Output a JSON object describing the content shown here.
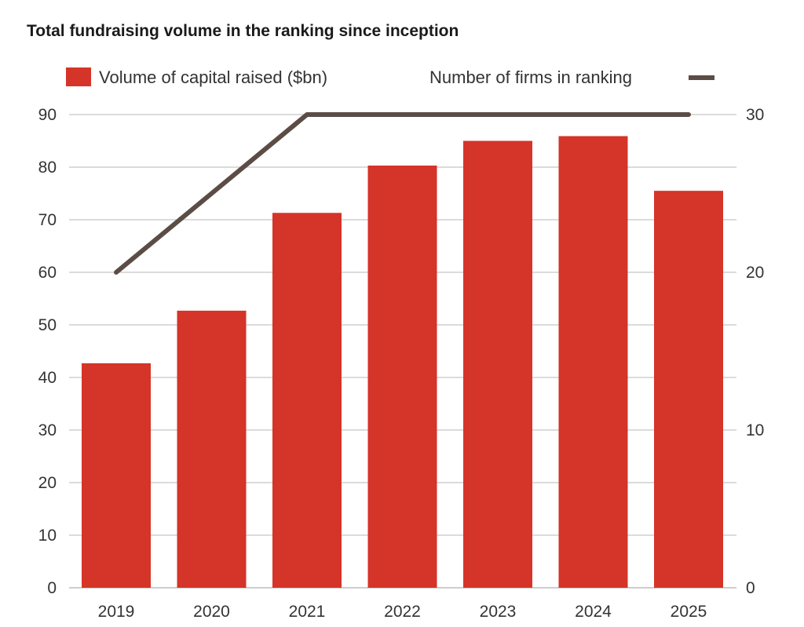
{
  "chart_data": {
    "type": "bar",
    "title": "Total fundraising volume in the ranking since inception",
    "categories": [
      "2019",
      "2020",
      "2021",
      "2022",
      "2023",
      "2024",
      "2025"
    ],
    "series": [
      {
        "name": "Volume of capital raised ($bn)",
        "type": "bar",
        "axis": "left",
        "color": "#d53429",
        "values": [
          42.7,
          52.7,
          71.3,
          80.3,
          85.0,
          85.9,
          75.5
        ]
      },
      {
        "name": "Number of firms in ranking",
        "type": "line",
        "axis": "right",
        "color": "#5b4d45",
        "values": [
          20,
          25,
          30,
          30,
          30,
          30,
          30
        ]
      }
    ],
    "left_axis": {
      "ylim": [
        0,
        90
      ],
      "ticks": [
        0,
        10,
        20,
        30,
        40,
        50,
        60,
        70,
        80,
        90
      ]
    },
    "right_axis": {
      "ylim": [
        0,
        30
      ],
      "ticks": [
        0,
        10,
        20,
        30
      ]
    },
    "grid": true,
    "legend": "top"
  }
}
